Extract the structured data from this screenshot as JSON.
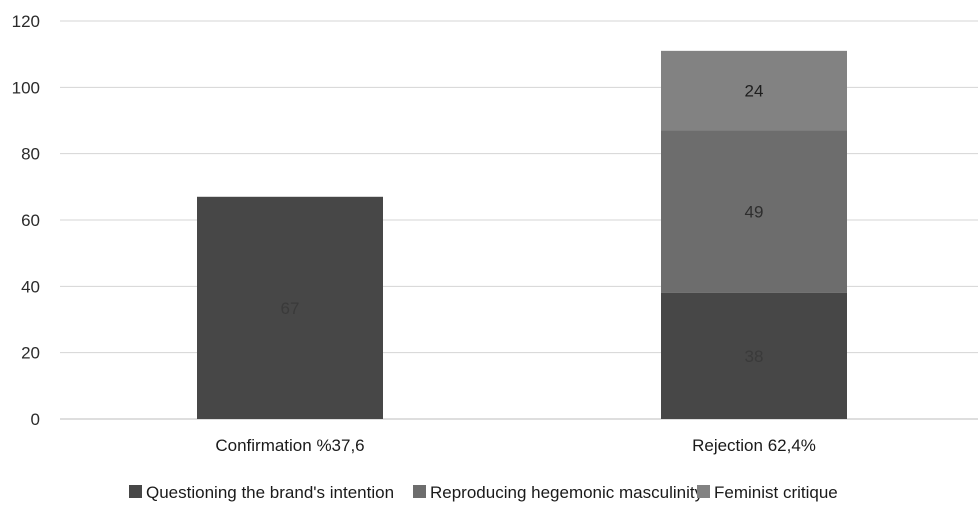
{
  "chart_data": {
    "type": "bar",
    "stacked": true,
    "categories": [
      "Confirmation %37,6",
      "Rejection 62,4%"
    ],
    "series": [
      {
        "name": "Questioning the brand's intention",
        "values": [
          67,
          38
        ],
        "color": "#474747",
        "label_color": "#3a3a3a"
      },
      {
        "name": "Reproducing hegemonic masculinity",
        "values": [
          0,
          49
        ],
        "color": "#6d6d6d",
        "label_color": "#2e2e2e"
      },
      {
        "name": "Feminist critique",
        "values": [
          0,
          24
        ],
        "color": "#828282",
        "label_color": "#1e1e1e"
      }
    ],
    "ylim": [
      0,
      120
    ],
    "yticks": [
      0,
      20,
      40,
      60,
      80,
      100,
      120
    ],
    "grid": true,
    "legend": "bottom",
    "title": "",
    "xlabel": "",
    "ylabel": ""
  }
}
